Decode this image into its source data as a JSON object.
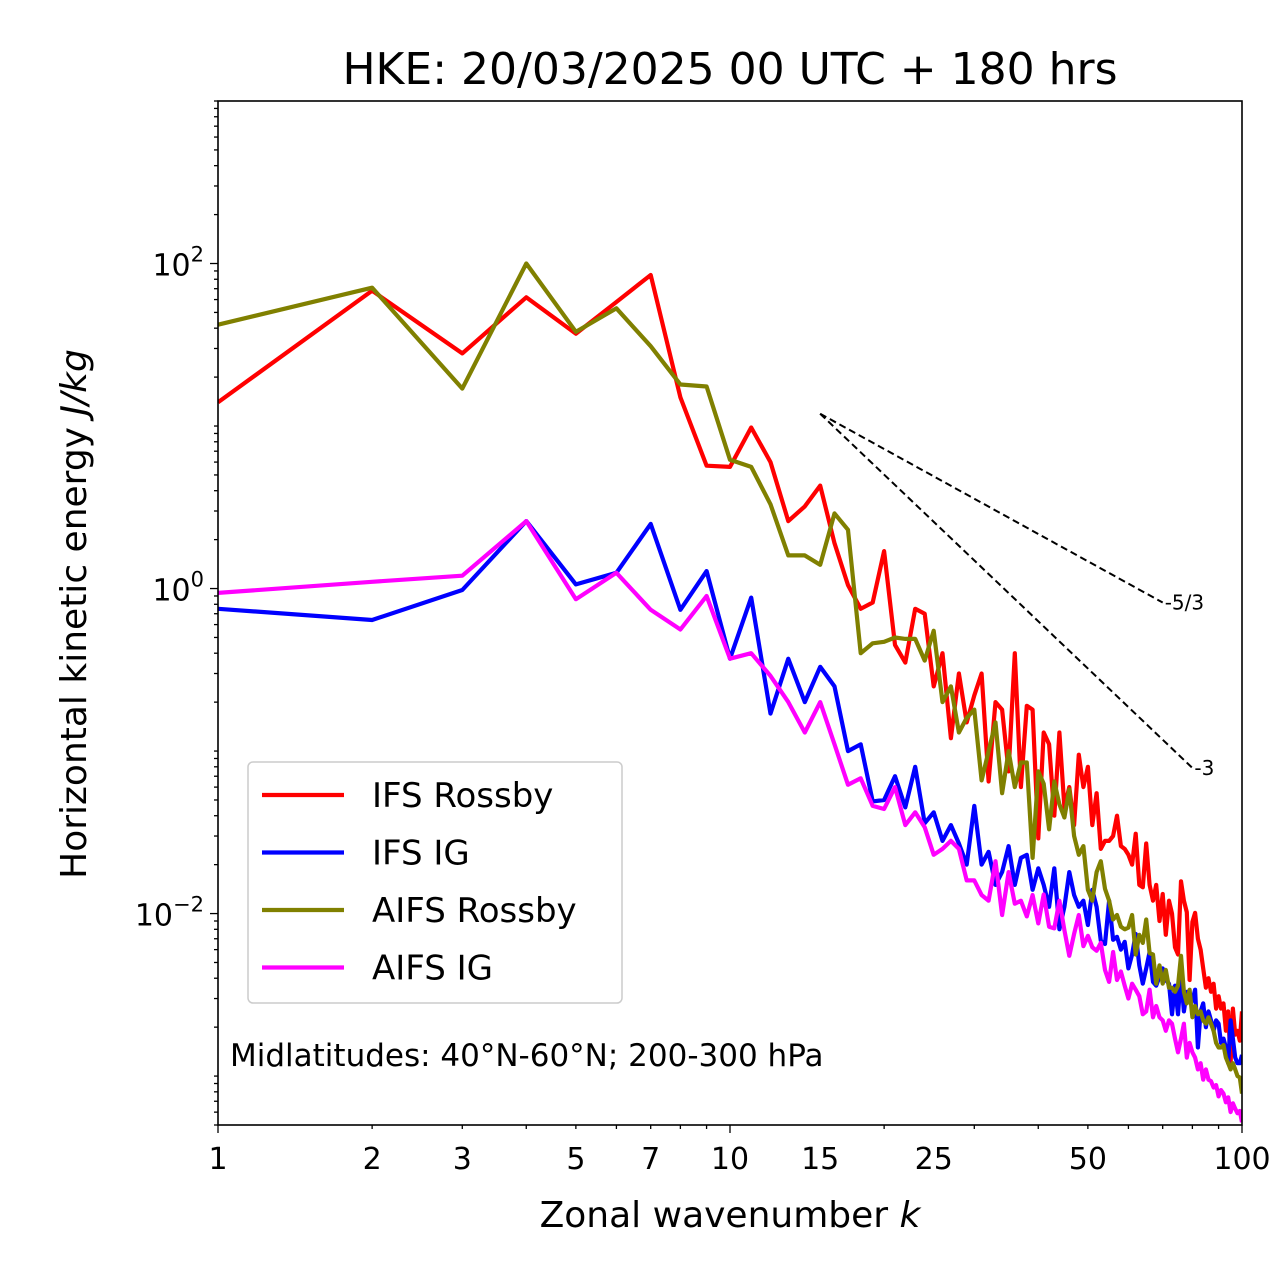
{
  "chart_data": {
    "type": "line",
    "title": "HKE: 20/03/2025 00 UTC + 180 hrs",
    "xlabel": "Zonal wavenumber k",
    "ylabel": "Horizontal kinetic energy J/kg",
    "xscale": "log",
    "yscale": "log",
    "xlim": [
      1,
      100
    ],
    "ylim": [
      0.0005,
      1000
    ],
    "x_ticks": [
      1,
      2,
      3,
      5,
      7,
      10,
      15,
      25,
      50,
      100
    ],
    "x_tick_labels": [
      "1",
      "2",
      "3",
      "5",
      "7",
      "10",
      "15",
      "25",
      "50",
      "100"
    ],
    "y_ticks": [
      0.01,
      1,
      100
    ],
    "legend": {
      "position": "lower-left"
    },
    "annotation": "Midlatitudes: 40°N-60°N; 200-300 hPa",
    "reference_slopes": [
      {
        "label": "-5/3",
        "x": [
          15,
          70
        ],
        "y": [
          11.9,
          0.82
        ]
      },
      {
        "label": "-3",
        "x": [
          15,
          80
        ],
        "y": [
          11.9,
          0.0787
        ]
      }
    ],
    "series": [
      {
        "name": "IFS Rossby",
        "color": "#ff0000",
        "x": [
          1,
          2,
          3,
          4,
          5,
          6,
          7,
          8,
          9,
          10,
          11,
          12,
          13,
          14,
          15,
          16,
          17,
          18,
          19,
          20,
          21,
          22,
          23,
          24,
          25,
          26,
          27,
          28,
          29,
          30,
          31,
          32,
          33,
          34,
          35,
          36,
          37,
          38,
          39,
          40,
          41,
          42,
          43,
          44,
          45,
          46,
          47,
          48,
          49,
          50,
          51,
          52,
          53,
          54,
          55,
          56,
          57,
          58,
          59,
          60,
          61,
          62,
          63,
          64,
          65,
          66,
          67,
          68,
          69,
          70,
          71,
          72,
          73,
          74,
          75,
          76,
          77,
          78,
          79,
          80,
          81,
          82,
          83,
          84,
          85,
          86,
          87,
          88,
          89,
          90,
          91,
          92,
          93,
          94,
          95,
          96,
          97,
          98,
          99,
          100
        ],
        "y": [
          14,
          68,
          28,
          62,
          37,
          58,
          85,
          15,
          5.7,
          5.6,
          9.8,
          6.0,
          2.6,
          3.2,
          4.3,
          1.9,
          1.05,
          0.75,
          0.82,
          1.7,
          0.45,
          0.35,
          0.75,
          0.7,
          0.25,
          0.4,
          0.12,
          0.3,
          0.15,
          0.22,
          0.3,
          0.065,
          0.2,
          0.18,
          0.075,
          0.4,
          0.06,
          0.19,
          0.18,
          0.029,
          0.13,
          0.11,
          0.04,
          0.13,
          0.045,
          0.06,
          0.035,
          0.095,
          0.06,
          0.08,
          0.035,
          0.055,
          0.025,
          0.028,
          0.028,
          0.03,
          0.04,
          0.026,
          0.025,
          0.023,
          0.02,
          0.031,
          0.015,
          0.0145,
          0.027,
          0.015,
          0.012,
          0.015,
          0.009,
          0.0132,
          0.0074,
          0.012,
          0.01,
          0.0062,
          0.0056,
          0.0158,
          0.012,
          0.0102,
          0.0039,
          0.0089,
          0.0101,
          0.007,
          0.006,
          0.0046,
          0.0035,
          0.004,
          0.0033,
          0.0037,
          0.0026,
          0.0031,
          0.0026,
          0.0028,
          0.0019,
          0.0025,
          0.0012,
          0.0026,
          0.0018,
          0.0019,
          0.00165,
          0.0025
        ]
      },
      {
        "name": "IFS IG",
        "color": "#0000ff",
        "x": [
          1,
          2,
          3,
          4,
          5,
          6,
          7,
          8,
          9,
          10,
          11,
          12,
          13,
          14,
          15,
          16,
          17,
          18,
          19,
          20,
          21,
          22,
          23,
          24,
          25,
          26,
          27,
          28,
          29,
          30,
          31,
          32,
          33,
          34,
          35,
          36,
          37,
          38,
          39,
          40,
          41,
          42,
          43,
          44,
          45,
          46,
          47,
          48,
          49,
          50,
          51,
          52,
          53,
          54,
          55,
          56,
          57,
          58,
          59,
          60,
          61,
          62,
          63,
          64,
          65,
          66,
          67,
          68,
          69,
          70,
          71,
          72,
          73,
          74,
          75,
          76,
          77,
          78,
          79,
          80,
          81,
          82,
          83,
          84,
          85,
          86,
          87,
          88,
          89,
          90,
          91,
          92,
          93,
          94,
          95,
          96,
          97,
          98,
          99,
          100
        ],
        "y": [
          0.75,
          0.64,
          0.98,
          2.6,
          1.06,
          1.25,
          2.5,
          0.74,
          1.28,
          0.37,
          0.88,
          0.17,
          0.37,
          0.2,
          0.33,
          0.25,
          0.1,
          0.11,
          0.049,
          0.05,
          0.07,
          0.045,
          0.08,
          0.036,
          0.042,
          0.028,
          0.035,
          0.027,
          0.02,
          0.046,
          0.02,
          0.024,
          0.015,
          0.018,
          0.026,
          0.015,
          0.022,
          0.023,
          0.014,
          0.019,
          0.015,
          0.011,
          0.019,
          0.008,
          0.011,
          0.018,
          0.013,
          0.011,
          0.012,
          0.0085,
          0.014,
          0.011,
          0.0068,
          0.0065,
          0.012,
          0.0069,
          0.0072,
          0.006,
          0.0067,
          0.0046,
          0.0056,
          0.0075,
          0.0048,
          0.0037,
          0.0046,
          0.0058,
          0.0038,
          0.0036,
          0.0041,
          0.0046,
          0.0039,
          0.0037,
          0.0024,
          0.0036,
          0.0024,
          0.0042,
          0.0025,
          0.0033,
          0.003,
          0.0029,
          0.0034,
          0.0015,
          0.0025,
          0.0028,
          0.002,
          0.0025,
          0.0022,
          0.0019,
          0.0022,
          0.0021,
          0.0016,
          0.0017,
          0.0015,
          0.0012,
          0.0022,
          0.0017,
          0.0013,
          0.0012,
          0.0012,
          0.00135
        ]
      },
      {
        "name": "AIFS Rossby",
        "color": "#808000",
        "x": [
          1,
          2,
          3,
          4,
          5,
          6,
          7,
          8,
          9,
          10,
          11,
          12,
          13,
          14,
          15,
          16,
          17,
          18,
          19,
          20,
          21,
          22,
          23,
          24,
          25,
          26,
          27,
          28,
          29,
          30,
          31,
          32,
          33,
          34,
          35,
          36,
          37,
          38,
          39,
          40,
          41,
          42,
          43,
          44,
          45,
          46,
          47,
          48,
          49,
          50,
          51,
          52,
          53,
          54,
          55,
          56,
          57,
          58,
          59,
          60,
          61,
          62,
          63,
          64,
          65,
          66,
          67,
          68,
          69,
          70,
          71,
          72,
          73,
          74,
          75,
          76,
          77,
          78,
          79,
          80,
          81,
          82,
          83,
          84,
          85,
          86,
          87,
          88,
          89,
          90,
          91,
          92,
          93,
          94,
          95,
          96,
          97,
          98,
          99,
          100
        ],
        "y": [
          42,
          71,
          17,
          100,
          38,
          53,
          31,
          18,
          17.5,
          6.2,
          5.6,
          3.3,
          1.6,
          1.6,
          1.4,
          2.9,
          2.3,
          0.4,
          0.46,
          0.47,
          0.5,
          0.49,
          0.49,
          0.36,
          0.55,
          0.2,
          0.25,
          0.13,
          0.16,
          0.18,
          0.066,
          0.1,
          0.15,
          0.055,
          0.1,
          0.06,
          0.085,
          0.085,
          0.022,
          0.075,
          0.063,
          0.033,
          0.065,
          0.047,
          0.039,
          0.058,
          0.03,
          0.023,
          0.026,
          0.014,
          0.012,
          0.018,
          0.021,
          0.0142,
          0.012,
          0.0092,
          0.0098,
          0.0083,
          0.008,
          0.0082,
          0.0098,
          0.0056,
          0.0074,
          0.0066,
          0.0092,
          0.0057,
          0.0056,
          0.0037,
          0.0048,
          0.0037,
          0.0045,
          0.0035,
          0.0035,
          0.0033,
          0.0036,
          0.0055,
          0.0033,
          0.0028,
          0.0034,
          0.0023,
          0.0027,
          0.0024,
          0.0025,
          0.0022,
          0.0021,
          0.0023,
          0.0021,
          0.0019,
          0.0016,
          0.0015,
          0.0015,
          0.00155,
          0.0013,
          0.0012,
          0.0011,
          0.0012,
          0.0011,
          0.001,
          0.00098,
          0.00078
        ]
      },
      {
        "name": "AIFS IG",
        "color": "#ff00ff",
        "x": [
          1,
          2,
          3,
          4,
          5,
          6,
          7,
          8,
          9,
          10,
          11,
          12,
          13,
          14,
          15,
          16,
          17,
          18,
          19,
          20,
          21,
          22,
          23,
          24,
          25,
          26,
          27,
          28,
          29,
          30,
          31,
          32,
          33,
          34,
          35,
          36,
          37,
          38,
          39,
          40,
          41,
          42,
          43,
          44,
          45,
          46,
          47,
          48,
          49,
          50,
          51,
          52,
          53,
          54,
          55,
          56,
          57,
          58,
          59,
          60,
          61,
          62,
          63,
          64,
          65,
          66,
          67,
          68,
          69,
          70,
          71,
          72,
          73,
          74,
          75,
          76,
          77,
          78,
          79,
          80,
          81,
          82,
          83,
          84,
          85,
          86,
          87,
          88,
          89,
          90,
          91,
          92,
          93,
          94,
          95,
          96,
          97,
          98,
          99,
          100
        ],
        "y": [
          0.94,
          1.1,
          1.2,
          2.6,
          0.86,
          1.25,
          0.74,
          0.56,
          0.9,
          0.37,
          0.4,
          0.29,
          0.2,
          0.13,
          0.2,
          0.11,
          0.062,
          0.068,
          0.046,
          0.044,
          0.06,
          0.035,
          0.042,
          0.034,
          0.023,
          0.025,
          0.028,
          0.025,
          0.016,
          0.016,
          0.013,
          0.012,
          0.021,
          0.0098,
          0.018,
          0.0115,
          0.012,
          0.0096,
          0.013,
          0.0087,
          0.0131,
          0.0083,
          0.0081,
          0.012,
          0.0079,
          0.0055,
          0.0075,
          0.0098,
          0.0063,
          0.0073,
          0.0062,
          0.0059,
          0.0066,
          0.0045,
          0.0038,
          0.0058,
          0.0039,
          0.0044,
          0.0036,
          0.003,
          0.0037,
          0.0034,
          0.0031,
          0.0024,
          0.0025,
          0.0034,
          0.0023,
          0.0027,
          0.0023,
          0.0022,
          0.0019,
          0.0022,
          0.0021,
          0.0017,
          0.0014,
          0.0017,
          0.0021,
          0.0013,
          0.0016,
          0.0014,
          0.0013,
          0.0011,
          0.0012,
          0.00095,
          0.0011,
          0.00095,
          0.00093,
          0.00085,
          0.00088,
          0.00075,
          0.00082,
          0.00078,
          0.00069,
          0.00074,
          0.0006,
          0.00068,
          0.00063,
          0.00059,
          0.00061,
          0.00052
        ]
      }
    ]
  }
}
